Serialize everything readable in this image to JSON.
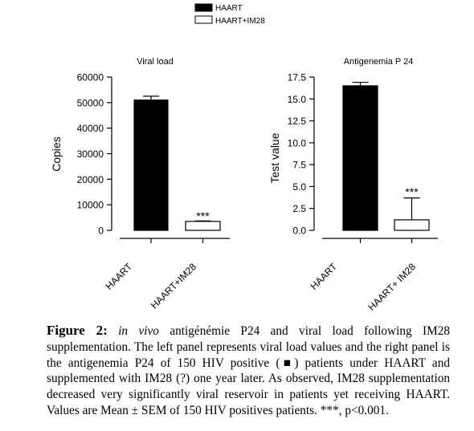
{
  "legend": [
    {
      "label": "HAART",
      "color": "#000000"
    },
    {
      "label": "HAART+IM28",
      "color": "#ffffff"
    }
  ],
  "chart_data": [
    {
      "type": "bar",
      "title": "Viral load",
      "ylabel": "Copies",
      "xlabel": "",
      "categories": [
        "HAART",
        "HAART+IM28"
      ],
      "values": [
        51000,
        3500
      ],
      "errors": [
        1500,
        200
      ],
      "bar_colors": [
        "#000000",
        "#ffffff"
      ],
      "ylim": [
        0,
        60000
      ],
      "yticks": [
        "0",
        "10000",
        "20000",
        "30000",
        "40000",
        "50000",
        "60000"
      ],
      "yticks_values": [
        0,
        10000,
        20000,
        30000,
        40000,
        50000,
        60000
      ],
      "significance": "***",
      "grid": false
    },
    {
      "type": "bar",
      "title": "Antigenemia P 24",
      "ylabel": "Test value",
      "xlabel": "",
      "categories": [
        "HAART",
        "HAART+  IM28"
      ],
      "values": [
        16.5,
        1.2
      ],
      "errors": [
        0.4,
        2.5
      ],
      "bar_colors": [
        "#000000",
        "#ffffff"
      ],
      "ylim": [
        0,
        17.5
      ],
      "yticks": [
        "0.0",
        "2.5",
        "5.0",
        "7.5",
        "10.0",
        "12.5",
        "15.0",
        "17.5"
      ],
      "yticks_values": [
        0,
        2.5,
        5,
        7.5,
        10,
        12.5,
        15,
        17.5
      ],
      "significance": "***",
      "grid": false
    }
  ],
  "caption": {
    "lead": "Figure 2:",
    "italic": "in vivo",
    "text": "antigénémie P24 and viral load following IM28 supplementation. The left panel represents viral load values and the right panel is the antigenemia P24 of 150 HIV positive (■) patients under HAART and supplemented with IM28 (?) one year later. As observed, IM28 supplementation decreased very significantly viral reservoir in patients yet receiving HAART. Values are Mean ± SEM of 150 HIV positives patients. ***, p<0.001."
  }
}
